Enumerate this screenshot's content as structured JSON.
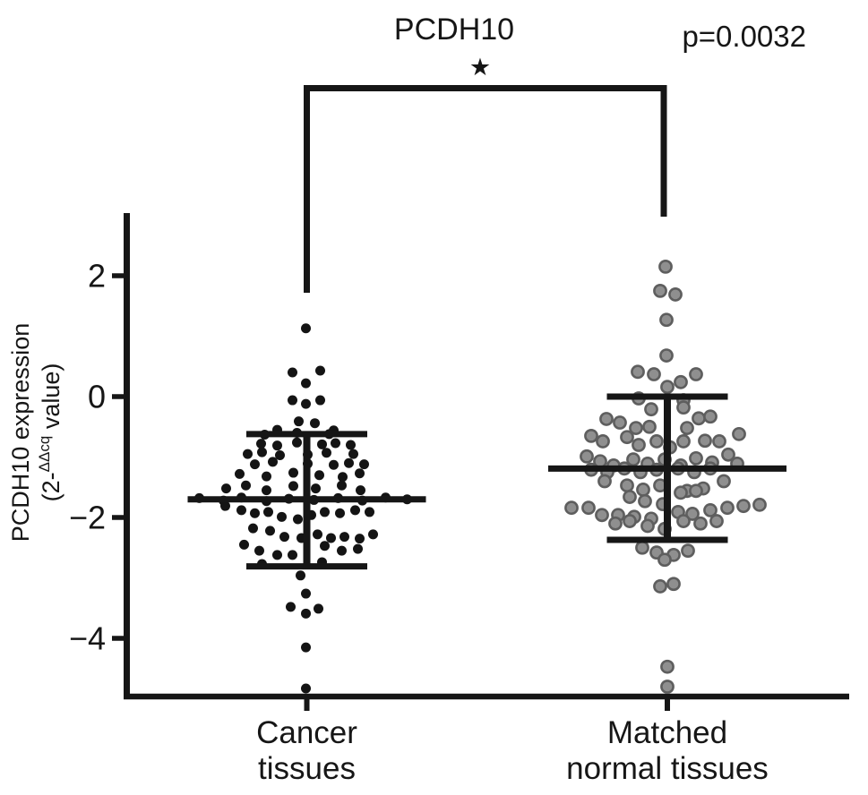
{
  "chart_data": {
    "type": "scatter",
    "subtype": "beeswarm_dot_plot_with_mean_sd_error_bars",
    "title": "PCDH10",
    "p_label": "p=0.0032",
    "significance_star": "★",
    "ylabel": {
      "line1": "PCDH10 expression",
      "line2_pre": "(2-",
      "line2_sup": "ΔΔcq",
      "line2_post": " value)"
    },
    "yticks": [
      {
        "label": "2",
        "value": 2
      },
      {
        "label": "0",
        "value": 0
      },
      {
        "label": "−2",
        "value": -2
      },
      {
        "label": "−4",
        "value": -4
      }
    ],
    "ylim": [
      -4.95,
      3.05
    ],
    "grid": false,
    "legend": false,
    "xcategories": [
      "Cancer tissues",
      "Matched normal tissues"
    ],
    "axis_color": "#161616",
    "groups": [
      {
        "name": "Cancer tissues",
        "label_lines": [
          "Cancer",
          "tissues"
        ],
        "marker": "filled-circle",
        "dot_color": "#141414",
        "mean": -1.7,
        "sd_upper": -0.62,
        "sd_lower": -2.81,
        "points": [
          [
            -1,
            1.13
          ],
          [
            -16,
            0.4
          ],
          [
            15,
            0.43
          ],
          [
            -1,
            0.22
          ],
          [
            -16,
            -0.06
          ],
          [
            -1,
            -0.12
          ],
          [
            15,
            -0.06
          ],
          [
            -9,
            -0.41
          ],
          [
            9,
            -0.44
          ],
          [
            -33,
            -0.55
          ],
          [
            30,
            -0.56
          ],
          [
            -47,
            -0.63
          ],
          [
            -11,
            -0.6
          ],
          [
            25,
            -0.62
          ],
          [
            -51,
            -0.78
          ],
          [
            -33,
            -0.81
          ],
          [
            -11,
            -0.76
          ],
          [
            17,
            -0.79
          ],
          [
            32,
            -0.77
          ],
          [
            49,
            -0.8
          ],
          [
            -66,
            -0.95
          ],
          [
            -50,
            -0.92
          ],
          [
            -30,
            -0.97
          ],
          [
            1,
            -0.96
          ],
          [
            22,
            -0.93
          ],
          [
            52,
            -0.95
          ],
          [
            -58,
            -1.12
          ],
          [
            -38,
            -1.08
          ],
          [
            1,
            -1.11
          ],
          [
            30,
            -1.13
          ],
          [
            47,
            -1.1
          ],
          [
            64,
            -1.12
          ],
          [
            -75,
            -1.28
          ],
          [
            -45,
            -1.32
          ],
          [
            -15,
            -1.26
          ],
          [
            14,
            -1.3
          ],
          [
            40,
            -1.33
          ],
          [
            59,
            -1.27
          ],
          [
            -90,
            -1.52
          ],
          [
            -68,
            -1.47
          ],
          [
            -45,
            -1.55
          ],
          [
            -15,
            -1.48
          ],
          [
            10,
            -1.52
          ],
          [
            39,
            -1.47
          ],
          [
            60,
            -1.55
          ],
          [
            -120,
            -1.68
          ],
          [
            -93,
            -1.72
          ],
          [
            -73,
            -1.67
          ],
          [
            -45,
            -1.73
          ],
          [
            -20,
            -1.69
          ],
          [
            8,
            -1.71
          ],
          [
            35,
            -1.68
          ],
          [
            62,
            -1.72
          ],
          [
            88,
            -1.67
          ],
          [
            112,
            -1.7
          ],
          [
            -91,
            -1.81
          ],
          [
            -73,
            -1.88
          ],
          [
            -58,
            -1.93
          ],
          [
            -43,
            -1.91
          ],
          [
            -28,
            -1.99
          ],
          [
            -10,
            -2.03
          ],
          [
            5,
            -1.96
          ],
          [
            20,
            -1.91
          ],
          [
            37,
            -1.93
          ],
          [
            54,
            -1.88
          ],
          [
            70,
            -1.91
          ],
          [
            -60,
            -2.18
          ],
          [
            -41,
            -2.22
          ],
          [
            -25,
            -2.32
          ],
          [
            -6,
            -2.34
          ],
          [
            12,
            -2.28
          ],
          [
            27,
            -2.34
          ],
          [
            42,
            -2.32
          ],
          [
            59,
            -2.35
          ],
          [
            74,
            -2.28
          ],
          [
            -70,
            -2.45
          ],
          [
            -53,
            -2.55
          ],
          [
            -33,
            -2.62
          ],
          [
            -16,
            -2.62
          ],
          [
            20,
            -2.47
          ],
          [
            39,
            -2.55
          ],
          [
            57,
            -2.52
          ],
          [
            -50,
            -2.77
          ],
          [
            17,
            -2.74
          ],
          [
            -7,
            -2.96
          ],
          [
            -1,
            -3.26
          ],
          [
            -18,
            -3.48
          ],
          [
            13,
            -3.51
          ],
          [
            -1,
            -3.59
          ],
          [
            -1,
            -4.15
          ],
          [
            -1,
            -4.83
          ]
        ]
      },
      {
        "name": "Matched normal tissues",
        "label_lines": [
          "Matched",
          "normal tissues"
        ],
        "marker": "open-circle",
        "dot_color": "#8f8f8f",
        "dot_stroke": "#5e5e5e",
        "mean": -1.19,
        "sd_upper": 0.0,
        "sd_lower": -2.37,
        "points": [
          [
            -2,
            2.15
          ],
          [
            -8,
            1.75
          ],
          [
            9,
            1.69
          ],
          [
            -1,
            1.27
          ],
          [
            -1,
            0.68
          ],
          [
            -33,
            0.41
          ],
          [
            -15,
            0.37
          ],
          [
            0,
            0.16
          ],
          [
            15,
            0.24
          ],
          [
            32,
            0.37
          ],
          [
            -32,
            -0.03
          ],
          [
            18,
            -0.06
          ],
          [
            -18,
            -0.21
          ],
          [
            18,
            -0.18
          ],
          [
            -68,
            -0.37
          ],
          [
            -53,
            -0.43
          ],
          [
            -35,
            -0.52
          ],
          [
            -20,
            -0.5
          ],
          [
            22,
            -0.52
          ],
          [
            35,
            -0.36
          ],
          [
            48,
            -0.33
          ],
          [
            -85,
            -0.65
          ],
          [
            -72,
            -0.74
          ],
          [
            -45,
            -0.67
          ],
          [
            -32,
            -0.8
          ],
          [
            -12,
            -0.74
          ],
          [
            3,
            -0.84
          ],
          [
            18,
            -0.74
          ],
          [
            42,
            -0.73
          ],
          [
            58,
            -0.74
          ],
          [
            80,
            -0.62
          ],
          [
            -90,
            -0.99
          ],
          [
            -75,
            -1.07
          ],
          [
            -60,
            -1.14
          ],
          [
            -38,
            -1.04
          ],
          [
            -22,
            -1.11
          ],
          [
            -3,
            -1.04
          ],
          [
            15,
            -1.14
          ],
          [
            32,
            -1.02
          ],
          [
            50,
            -1.09
          ],
          [
            68,
            -0.96
          ],
          [
            -85,
            -1.21
          ],
          [
            -67,
            -1.25
          ],
          [
            -48,
            -1.19
          ],
          [
            -30,
            -1.25
          ],
          [
            -12,
            -1.21
          ],
          [
            12,
            -1.19
          ],
          [
            30,
            -1.25
          ],
          [
            48,
            -1.19
          ],
          [
            78,
            -1.11
          ],
          [
            -70,
            -1.4
          ],
          [
            -45,
            -1.47
          ],
          [
            -27,
            -1.54
          ],
          [
            -8,
            -1.47
          ],
          [
            22,
            -1.56
          ],
          [
            40,
            -1.52
          ],
          [
            63,
            -1.4
          ],
          [
            -42,
            -1.66
          ],
          [
            -25,
            -1.73
          ],
          [
            -5,
            -1.78
          ],
          [
            15,
            -1.59
          ],
          [
            32,
            -1.56
          ],
          [
            -107,
            -1.84
          ],
          [
            -88,
            -1.84
          ],
          [
            -73,
            -1.96
          ],
          [
            -55,
            -1.96
          ],
          [
            -37,
            -1.99
          ],
          [
            -18,
            -2.02
          ],
          [
            12,
            -1.91
          ],
          [
            28,
            -1.94
          ],
          [
            48,
            -1.88
          ],
          [
            67,
            -1.84
          ],
          [
            85,
            -1.81
          ],
          [
            103,
            -1.79
          ],
          [
            -58,
            -2.1
          ],
          [
            -42,
            -2.06
          ],
          [
            -22,
            -2.14
          ],
          [
            -3,
            -2.19
          ],
          [
            18,
            -2.06
          ],
          [
            37,
            -2.1
          ],
          [
            55,
            -2.06
          ],
          [
            -28,
            -2.5
          ],
          [
            -12,
            -2.58
          ],
          [
            7,
            -2.62
          ],
          [
            23,
            -2.55
          ],
          [
            -3,
            -2.7
          ],
          [
            -8,
            -3.14
          ],
          [
            7,
            -3.1
          ],
          [
            0,
            -4.47
          ],
          [
            0,
            -4.8
          ]
        ]
      }
    ]
  }
}
